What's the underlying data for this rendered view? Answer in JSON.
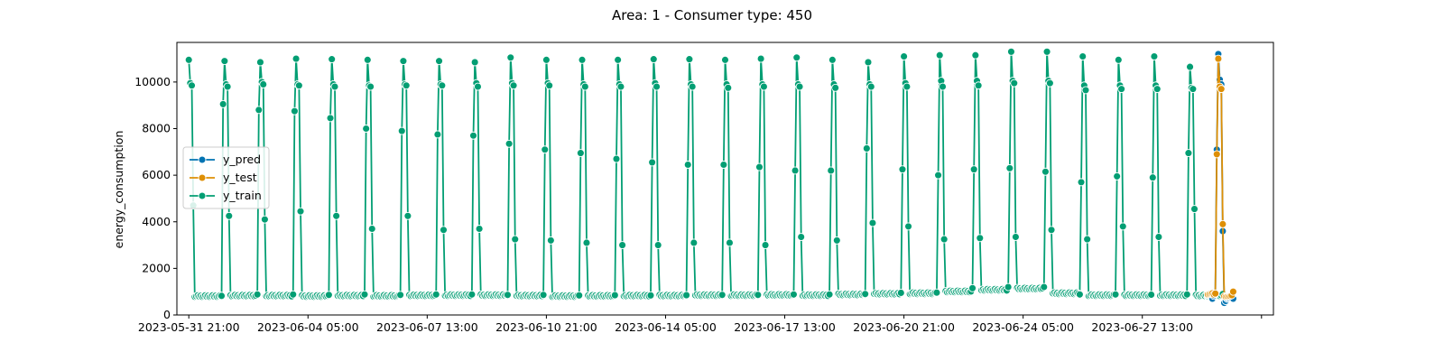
{
  "chart_data": {
    "type": "line",
    "title": "Area: 1 - Consumer type: 450",
    "xlabel": "",
    "ylabel": "energy_consumption",
    "ylim": [
      0,
      11700
    ],
    "y_ticks": [
      0,
      2000,
      4000,
      6000,
      8000,
      10000
    ],
    "x_tick_labels": [
      "2023-05-31  21:00",
      "2023-06-04  05:00",
      "2023-06-07  13:00",
      "2023-06-10  21:00",
      "2023-06-14  05:00",
      "2023-06-17  13:00",
      "2023-06-20  21:00",
      "2023-06-24  05:00",
      "2023-06-27  13:00",
      ""
    ],
    "x_ticks_hours": [
      0,
      80,
      160,
      240,
      320,
      400,
      480,
      560,
      640,
      720
    ],
    "xlim_hours": [
      -8,
      728
    ],
    "legend": {
      "position": "center-left",
      "entries": [
        "y_pred",
        "y_test",
        "y_train"
      ]
    },
    "colors": {
      "y_pred": "#0173b2",
      "y_test": "#de8f05",
      "y_train": "#029e73"
    },
    "daily_pattern": {
      "hours_after_day_start": [
        -1,
        0,
        1,
        2,
        3,
        4,
        5,
        6,
        7,
        8,
        9,
        10,
        11,
        12,
        13,
        14,
        15,
        16,
        17,
        18,
        19,
        20,
        21,
        22
      ],
      "profile_descriptor": [
        "pre",
        "peak",
        "high1",
        "high2",
        "drop",
        "low",
        "low",
        "low",
        "low",
        "low",
        "low",
        "low",
        "low",
        "low",
        "low",
        "low",
        "low",
        "low",
        "low",
        "low",
        "low",
        "low",
        "low",
        "rise"
      ]
    },
    "series": [
      {
        "name": "y_train",
        "day_start_hours": [
          0,
          24,
          48,
          72,
          96,
          120,
          144,
          168,
          192,
          216,
          240,
          264,
          288,
          312,
          336,
          360,
          384,
          408,
          432,
          456,
          480,
          504,
          528,
          552,
          576,
          600,
          624,
          648,
          672
        ],
        "peak": [
          10950,
          10900,
          10850,
          11000,
          10980,
          10950,
          10900,
          10900,
          10850,
          11050,
          10950,
          10950,
          10950,
          10980,
          10980,
          10950,
          11000,
          11050,
          10950,
          10850,
          11100,
          11150,
          11150,
          11300,
          11300,
          11100,
          10950,
          11100,
          10650
        ],
        "high1": [
          9950,
          9900,
          10000,
          9900,
          9900,
          9850,
          9900,
          9900,
          9950,
          9950,
          9950,
          9900,
          9900,
          9950,
          9900,
          9900,
          9900,
          9900,
          9900,
          9900,
          9950,
          10050,
          10050,
          10050,
          10050,
          9850,
          9850,
          9850,
          9750
        ],
        "high2": [
          9850,
          9800,
          9900,
          9850,
          9800,
          9800,
          9850,
          9850,
          9800,
          9850,
          9850,
          9800,
          9800,
          9800,
          9800,
          9750,
          9800,
          9800,
          9750,
          9800,
          9800,
          9800,
          9850,
          9950,
          9950,
          9650,
          9700,
          9700,
          9700
        ],
        "pre": [
          0,
          9050,
          8800,
          8750,
          8450,
          8000,
          7900,
          7750,
          7700,
          7350,
          7100,
          6950,
          6700,
          6550,
          6450,
          6450,
          6350,
          6200,
          6200,
          7150,
          6250,
          6000,
          6250,
          6300,
          6150,
          5700,
          5950,
          5900,
          6950
        ],
        "drop": [
          4700,
          4250,
          4100,
          4450,
          4250,
          3700,
          4250,
          3650,
          3700,
          3250,
          3200,
          3100,
          3000,
          3000,
          3100,
          3100,
          3000,
          3350,
          3200,
          3950,
          3800,
          3250,
          3300,
          3350,
          3650,
          3250,
          3800,
          3350,
          4550
        ],
        "low": [
          780,
          800,
          800,
          780,
          800,
          790,
          810,
          820,
          820,
          800,
          780,
          790,
          800,
          800,
          820,
          820,
          830,
          820,
          850,
          880,
          900,
          980,
          1050,
          1100,
          900,
          820,
          820,
          820,
          800
        ],
        "rise": [
          820,
          880,
          880,
          860,
          880,
          860,
          880,
          880,
          860,
          860,
          840,
          850,
          840,
          850,
          860,
          860,
          880,
          880,
          900,
          950,
          960,
          1150,
          1200,
          1200,
          880,
          880,
          870,
          880,
          900
        ]
      },
      {
        "name": "y_test",
        "x_hours": [
          684,
          685,
          686,
          687,
          688,
          689,
          690,
          691,
          692,
          693,
          694,
          695,
          696,
          697,
          698,
          699,
          700,
          701
        ],
        "y": [
          880,
          900,
          920,
          930,
          880,
          920,
          6900,
          11000,
          9800,
          9700,
          3900,
          800,
          780,
          790,
          800,
          820,
          850,
          1000
        ]
      },
      {
        "name": "y_pred",
        "x_hours": [
          684,
          685,
          686,
          687,
          688,
          689,
          690,
          691,
          692,
          693,
          694,
          695,
          696,
          697,
          698,
          699,
          700,
          701
        ],
        "y": [
          850,
          880,
          900,
          700,
          820,
          900,
          7100,
          11200,
          10100,
          9900,
          3600,
          520,
          600,
          700,
          720,
          750,
          780,
          700
        ]
      }
    ]
  }
}
